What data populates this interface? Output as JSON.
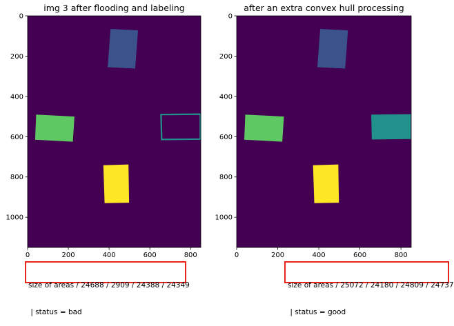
{
  "chart_data": [
    {
      "type": "heatmap",
      "title": "img 3 after flooding and labeling",
      "xlabel": "",
      "ylabel": "",
      "xlim": [
        0,
        850
      ],
      "ylim": [
        1150,
        0
      ],
      "x_ticks": [
        0,
        200,
        400,
        600,
        800
      ],
      "y_ticks": [
        0,
        200,
        400,
        600,
        800,
        1000
      ],
      "background_color": "#440154",
      "regions": [
        {
          "shape": "filled",
          "color": "#3b528b",
          "corners": [
            [
              407,
              65
            ],
            [
              542,
              72
            ],
            [
              528,
              262
            ],
            [
              393,
              255
            ]
          ]
        },
        {
          "shape": "filled",
          "color": "#5ec962",
          "corners": [
            [
              42,
              490
            ],
            [
              230,
              500
            ],
            [
              222,
              625
            ],
            [
              37,
              615
            ]
          ]
        },
        {
          "shape": "outline",
          "color": "#21918c",
          "corners": [
            [
              655,
              490
            ],
            [
              848,
              488
            ],
            [
              848,
              612
            ],
            [
              658,
              614
            ]
          ]
        },
        {
          "shape": "filled",
          "color": "#fde725",
          "corners": [
            [
              372,
              742
            ],
            [
              495,
              738
            ],
            [
              498,
              928
            ],
            [
              378,
              930
            ]
          ]
        }
      ],
      "caption": {
        "line1": "size of areas / 24688 / 2909 / 24388 / 24349",
        "line2": " | status = bad"
      }
    },
    {
      "type": "heatmap",
      "title": "after an extra convex hull processing",
      "xlabel": "",
      "ylabel": "",
      "xlim": [
        0,
        850
      ],
      "ylim": [
        1150,
        0
      ],
      "x_ticks": [
        0,
        200,
        400,
        600,
        800
      ],
      "y_ticks": [
        0,
        200,
        400,
        600,
        800,
        1000
      ],
      "background_color": "#440154",
      "regions": [
        {
          "shape": "filled",
          "color": "#3b528b",
          "corners": [
            [
              407,
              65
            ],
            [
              542,
              72
            ],
            [
              528,
              262
            ],
            [
              393,
              255
            ]
          ]
        },
        {
          "shape": "filled",
          "color": "#5ec962",
          "corners": [
            [
              42,
              490
            ],
            [
              230,
              500
            ],
            [
              222,
              625
            ],
            [
              37,
              615
            ]
          ]
        },
        {
          "shape": "filled",
          "color": "#21918c",
          "corners": [
            [
              655,
              490
            ],
            [
              848,
              488
            ],
            [
              848,
              612
            ],
            [
              658,
              614
            ]
          ]
        },
        {
          "shape": "filled",
          "color": "#fde725",
          "corners": [
            [
              372,
              742
            ],
            [
              495,
              738
            ],
            [
              498,
              928
            ],
            [
              378,
              930
            ]
          ]
        }
      ],
      "caption": {
        "line1": "size of areas / 25072 / 24180 / 24809 / 24737",
        "line2": " | status = good"
      }
    }
  ]
}
